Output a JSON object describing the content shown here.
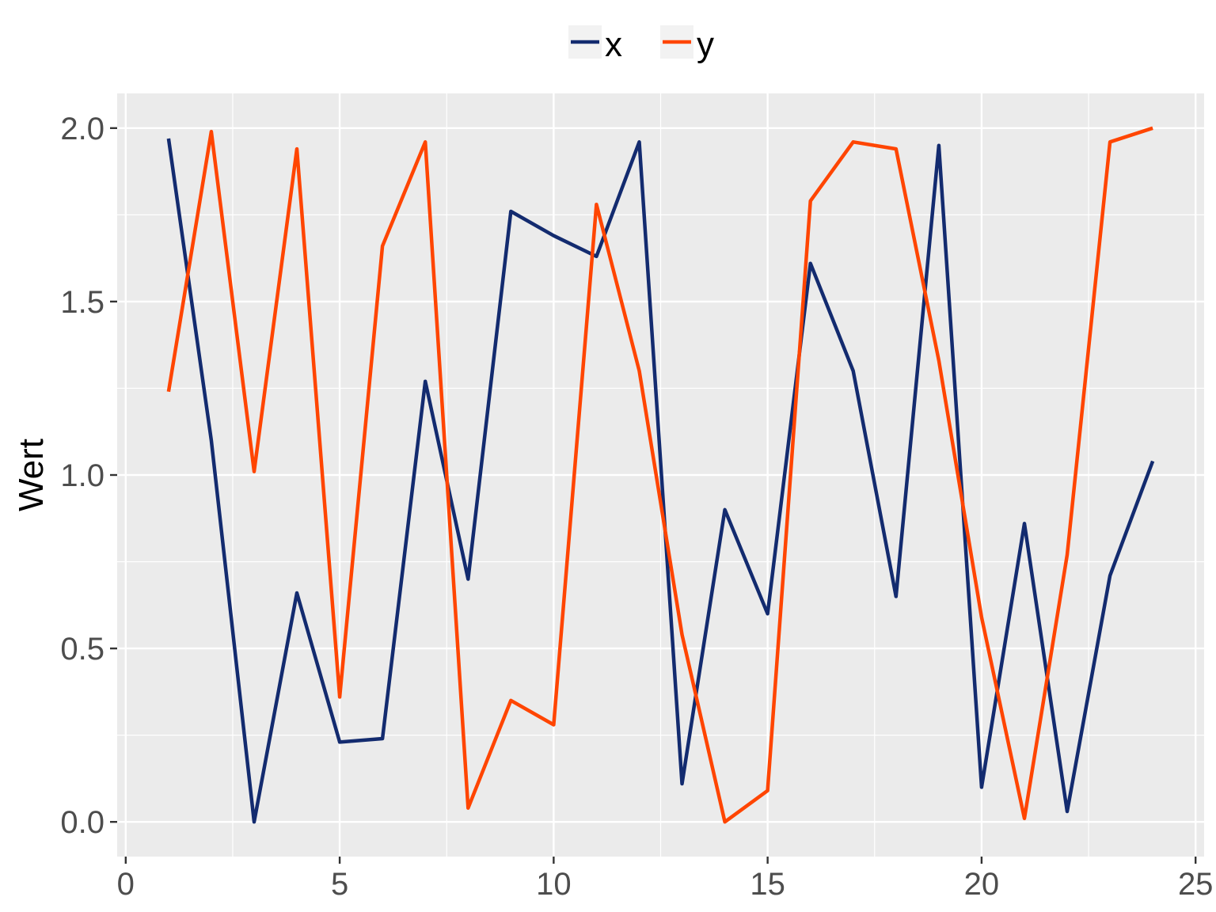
{
  "chart_data": {
    "type": "line",
    "title": "",
    "xlabel": "",
    "ylabel": "Wert",
    "xlim": [
      -0.2,
      25.2
    ],
    "ylim": [
      -0.1,
      2.1
    ],
    "x_ticks": [
      0,
      5,
      10,
      15,
      20,
      25
    ],
    "x_tick_labels": [
      "0",
      "5",
      "10",
      "15",
      "20",
      "25"
    ],
    "y_ticks": [
      0,
      0.5,
      1,
      1.5,
      2
    ],
    "y_tick_labels": [
      "0.0",
      "0.5",
      "1.0",
      "1.5",
      "2.0"
    ],
    "grid": true,
    "legend_position": "top",
    "panel_color": "#ebebeb",
    "x": [
      1,
      2,
      3,
      4,
      5,
      6,
      7,
      8,
      9,
      10,
      11,
      12,
      13,
      14,
      15,
      16,
      17,
      18,
      19,
      20,
      21,
      22,
      23,
      24
    ],
    "series": [
      {
        "name": "x",
        "color": "#132b6f",
        "values": [
          1.97,
          1.1,
          0.0,
          0.66,
          0.23,
          0.24,
          1.27,
          0.7,
          1.76,
          1.69,
          1.63,
          1.96,
          0.11,
          0.9,
          0.6,
          1.61,
          1.3,
          0.65,
          1.95,
          0.1,
          0.86,
          0.03,
          0.71,
          1.04
        ]
      },
      {
        "name": "y",
        "color": "#ff4500",
        "values": [
          1.24,
          1.99,
          1.01,
          1.94,
          0.36,
          1.66,
          1.96,
          0.04,
          0.35,
          0.28,
          1.78,
          1.3,
          0.54,
          0.0,
          0.09,
          1.79,
          1.96,
          1.94,
          1.33,
          0.59,
          0.01,
          0.77,
          1.96,
          2.0
        ]
      }
    ]
  }
}
